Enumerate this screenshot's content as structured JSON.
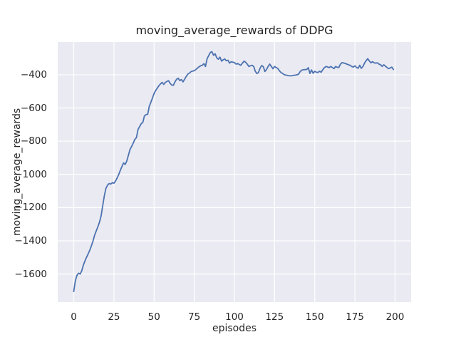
{
  "chart_data": {
    "type": "line",
    "title": "moving_average_rewards of DDPG",
    "xlabel": "episodes",
    "ylabel": "moving_average_rewards",
    "x_ticks": [
      0,
      25,
      50,
      75,
      100,
      125,
      150,
      175,
      200
    ],
    "y_ticks": [
      -400,
      -600,
      -800,
      -1000,
      -1200,
      -1400,
      -1600
    ],
    "xlim": [
      -10,
      210
    ],
    "ylim": [
      -1769,
      -203
    ],
    "grid": true,
    "legend_position": "none",
    "panel_background": "#eaeaf2",
    "grid_color": "#ffffff",
    "figure_background": "#ffffff",
    "text_color": "#262626",
    "line_color": "#4c72b0",
    "series": [
      {
        "name": "moving_average_rewards",
        "x_start": 0,
        "x_step": 1,
        "values": [
          -1705,
          -1640,
          -1607,
          -1595,
          -1600,
          -1580,
          -1545,
          -1520,
          -1498,
          -1478,
          -1455,
          -1430,
          -1400,
          -1365,
          -1340,
          -1315,
          -1288,
          -1250,
          -1190,
          -1130,
          -1085,
          -1065,
          -1055,
          -1058,
          -1050,
          -1053,
          -1040,
          -1021,
          -1000,
          -975,
          -952,
          -931,
          -940,
          -920,
          -885,
          -850,
          -832,
          -812,
          -790,
          -778,
          -730,
          -712,
          -695,
          -686,
          -648,
          -640,
          -638,
          -590,
          -565,
          -540,
          -512,
          -495,
          -480,
          -466,
          -455,
          -446,
          -458,
          -446,
          -440,
          -436,
          -452,
          -462,
          -464,
          -443,
          -428,
          -421,
          -435,
          -429,
          -443,
          -427,
          -410,
          -396,
          -390,
          -381,
          -378,
          -376,
          -368,
          -360,
          -352,
          -346,
          -343,
          -333,
          -350,
          -303,
          -285,
          -266,
          -261,
          -283,
          -274,
          -298,
          -307,
          -294,
          -318,
          -310,
          -305,
          -316,
          -313,
          -330,
          -322,
          -324,
          -326,
          -336,
          -332,
          -338,
          -343,
          -330,
          -318,
          -325,
          -336,
          -350,
          -346,
          -343,
          -350,
          -379,
          -393,
          -386,
          -360,
          -344,
          -352,
          -380,
          -368,
          -350,
          -336,
          -350,
          -364,
          -350,
          -356,
          -362,
          -376,
          -386,
          -392,
          -399,
          -402,
          -404,
          -406,
          -407,
          -405,
          -403,
          -402,
          -400,
          -396,
          -380,
          -372,
          -370,
          -369,
          -368,
          -357,
          -392,
          -371,
          -391,
          -379,
          -385,
          -386,
          -379,
          -385,
          -370,
          -357,
          -350,
          -353,
          -357,
          -350,
          -356,
          -363,
          -350,
          -355,
          -356,
          -336,
          -327,
          -329,
          -332,
          -336,
          -340,
          -343,
          -350,
          -354,
          -346,
          -356,
          -361,
          -343,
          -361,
          -350,
          -330,
          -315,
          -303,
          -317,
          -328,
          -321,
          -328,
          -330,
          -328,
          -336,
          -340,
          -350,
          -340,
          -348,
          -356,
          -363,
          -359,
          -354,
          -368
        ]
      }
    ]
  }
}
